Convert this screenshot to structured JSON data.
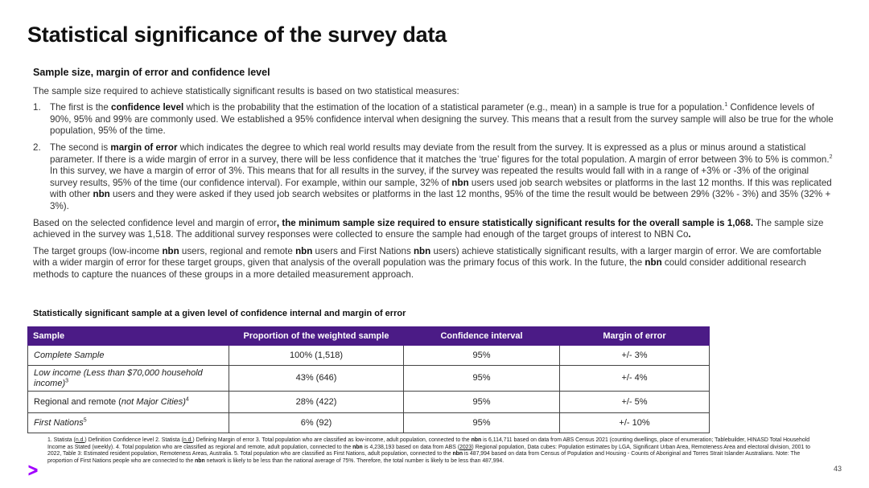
{
  "title": "Statistical significance of the survey data",
  "section_heading": "Sample size, margin of error and confidence level",
  "intro": "The sample size required to achieve statistically significant results is based on two statistical measures:",
  "items": [
    {
      "num": "1.",
      "pre": "The first is the ",
      "bold": "confidence level",
      "post": " which is the probability that the estimation of the location of a statistical parameter (e.g., mean) in a sample is true for a population.",
      "sup": "1",
      "post2": " Confidence levels of 90%, 95% and 99% are commonly used. We established a 95% confidence interval when designing the survey. This means that a result from the survey sample will also be true for the whole population, 95% of the time."
    },
    {
      "num": "2.",
      "pre": "The second is ",
      "bold": "margin of error",
      "post": " which indicates the degree to which real world results may deviate from the result from the survey. It is expressed as a plus or minus around a statistical parameter. If there is a wide margin of error in a survey, there will be less confidence that it matches the ‘true’ figures for the total population. A margin of error between 3% to 5% is common.",
      "sup": "2",
      "post2": " In this survey, we have a margin of error of 3%. This means that for all results in the survey, if the survey was repeated the results would fall with in a range of +3% or -3% of the original survey results, 95% of the time (our confidence interval). For example, within our sample, 32% of ",
      "nbn1": "nbn",
      "post3": " users used job search websites or platforms in the last 12 months. If this was replicated with other ",
      "nbn2": "nbn",
      "post4": " users and they were asked if they used job search websites or platforms in the last 12 months, 95% of the time the result would be between 29% (32% - 3%) and 35% (32% + 3%)."
    }
  ],
  "para_min": {
    "pre": "Based on the selected confidence level and margin of error",
    "bold": ", the minimum sample size required to ensure statistically significant results for the overall sample is 1,068.",
    "post": " The sample size achieved in the survey was 1,518. The additional survey responses were collected to ensure the sample had enough of the target groups of interest to NBN Co",
    "end": "."
  },
  "para_target": {
    "t1": "The target groups (low-income ",
    "n1": "nbn",
    "t2": " users, regional and remote ",
    "n2": "nbn",
    "t3": " users and First Nations ",
    "n3": "nbn",
    "t4": " users) achieve statistically significant results, with a larger margin of error. We are comfortable with a wider margin of error for these target groups, given that analysis of the overall population was the primary focus of this work. In the future, the ",
    "n4": "nbn",
    "t5": " could consider additional research methods to capture the nuances of these groups in a more detailed measurement approach."
  },
  "table_title": "Statistically significant sample at a given level of confidence internal and margin of error",
  "table": {
    "headers": [
      "Sample",
      "Proportion of the weighted sample",
      "Confidence interval",
      "Margin of error"
    ],
    "rows": [
      {
        "sample": "Complete Sample",
        "sup": "",
        "proportion": "100% (1,518)",
        "ci": "95%",
        "moe": "+/- 3%"
      },
      {
        "sample": "Low income (Less than $70,000 household income)",
        "sup": "3",
        "proportion": "43% (646)",
        "ci": "95%",
        "moe": "+/- 4%"
      },
      {
        "sample_a": "Regional and remote (",
        "sample_b": "not Major Cities)",
        "sup": "4",
        "proportion": "28% (422)",
        "ci": "95%",
        "moe": "+/- 5%"
      },
      {
        "sample": "First Nations",
        "sup": "5",
        "proportion": "6% (92)",
        "ci": "95%",
        "moe": "+/- 10%"
      }
    ]
  },
  "footnote": {
    "f1": "1. Statista (",
    "nd1": "n.d.",
    "f2": ") Definition Confidence level 2. Statista (",
    "nd2": "n.d.",
    "f3": ") Defining Margin of error 3. Total population who are classified as low-income, adult population, connected to the ",
    "nbn1": "nbn",
    "f4": " is 6,114,711 based on data from ABS Census 2021 (counting dwellings, place of enumeration; Tablebuilder, HINASD Total Household Income as Stated (weekly). 4. Total population who are classified as regional and remote, adult population, connected to the ",
    "nbn2": "nbn",
    "f5": " is 4,238,193 based on data from ABS (",
    "y2023": "2023",
    "f6": ") Regional population, Data cubes: Population estimates by LGA, Significant Urban Area, Remoteness Area and electoral division, 2001 to 2022, Table 3: Estimated resident population, Remoteness Areas, Australia. 5. Total population who are classified as First Nations, adult population, connected to the ",
    "nbn3": "nbn",
    "f7": " is 487,994 based on data from Census of Population and Housing - Counts of Aboriginal and Torres Strait Islander Australians. Note: The proportion of First Nations people who are connected to the ",
    "nbn4": "nbn",
    "f8": " network is likely to be less than the national average of 75%. Therefore, the total number is likely to be less than 487,994."
  },
  "page_number": "43",
  "colors": {
    "header_bg": "#4b1b86",
    "logo": "#a100ff"
  }
}
